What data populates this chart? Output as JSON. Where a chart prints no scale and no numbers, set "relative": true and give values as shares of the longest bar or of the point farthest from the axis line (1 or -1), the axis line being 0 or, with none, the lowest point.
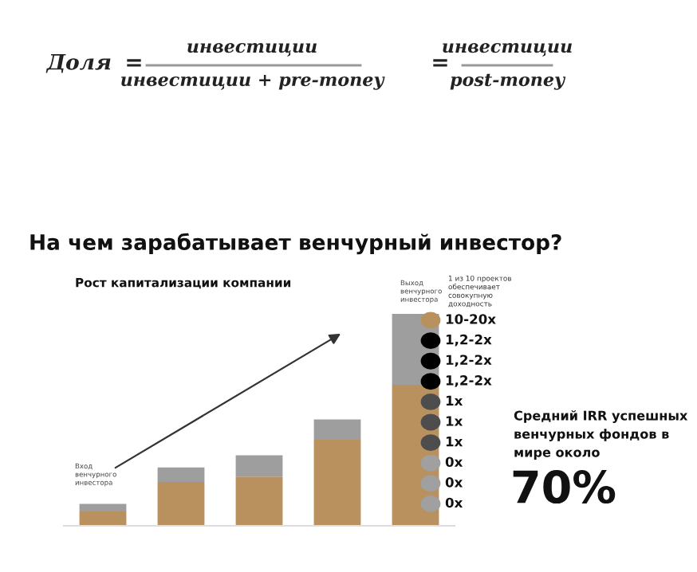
{
  "chart_data": [
    {
      "type": "other",
      "annotations": [
        "Доля",
        "=",
        "инвестиции",
        "инвестиции + pre-money",
        "=",
        "инвестиции",
        "post-money"
      ]
    },
    {
      "type": "bar",
      "title": "На чем зарабатывает венчурный инвестор?",
      "subtitle": "Рост капитализации компании",
      "categories": [
        null,
        null,
        null,
        null,
        null
      ],
      "stacked": true,
      "relative": true,
      "series": [
        {
          "color": "#b8915e",
          "values": [
            0.068,
            0.207,
            0.232,
            0.406,
            0.665
          ]
        },
        {
          "color": "#9e9e9e",
          "values": [
            0.035,
            0.068,
            0.101,
            0.096,
            0.335
          ]
        }
      ],
      "annotations": [
        "Вход венчурного инвестора",
        "Выход венчурного инвестора"
      ]
    },
    {
      "type": "other",
      "annotations": [
        "1 из 10 проектов обеспечивает совокупную доходность",
        "10-20x",
        "1,2-2x",
        "1,2-2x",
        "1,2-2x",
        "1x",
        "1x",
        "1x",
        "0x",
        "0x",
        "0x",
        "Средний IRR успешных венчурных фондов в мире около",
        "70%"
      ]
    }
  ]
}
